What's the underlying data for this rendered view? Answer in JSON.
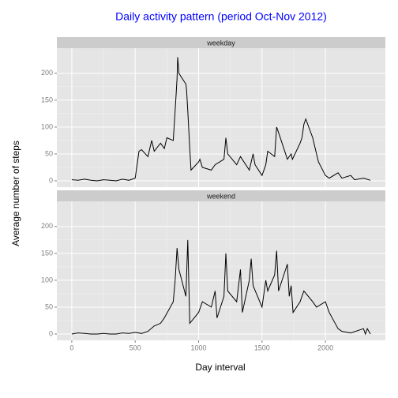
{
  "chart_data": {
    "type": "line",
    "title": "Daily activity pattern (period Oct-Nov 2012)",
    "x_label": "Day interval",
    "y_label": "Average number of steps",
    "xlim": [
      -117.75,
      2472.75
    ],
    "ylim": [
      -11.8,
      246.8
    ],
    "xticks": [
      0,
      500,
      1000,
      1500,
      2000
    ],
    "yticks": [
      0,
      50,
      100,
      150,
      200
    ],
    "grid": true,
    "series": [
      {
        "name": "weekday",
        "color": "#000000",
        "x": [
          0,
          50,
          100,
          150,
          200,
          250,
          300,
          350,
          400,
          450,
          500,
          530,
          550,
          600,
          630,
          650,
          700,
          730,
          750,
          800,
          820,
          830,
          835,
          845,
          900,
          905,
          915,
          930,
          940,
          1000,
          1010,
          1030,
          1100,
          1130,
          1200,
          1215,
          1230,
          1300,
          1330,
          1400,
          1430,
          1445,
          1500,
          1530,
          1545,
          1600,
          1615,
          1630,
          1700,
          1730,
          1740,
          1800,
          1815,
          1830,
          1845,
          1900,
          1930,
          1945,
          2000,
          2030,
          2100,
          2130,
          2200,
          2230,
          2300,
          2355
        ],
        "values": [
          2,
          1,
          3,
          1,
          0,
          2,
          1,
          0,
          3,
          1,
          5,
          55,
          58,
          45,
          75,
          55,
          70,
          60,
          80,
          75,
          150,
          190,
          230,
          200,
          180,
          170,
          130,
          60,
          20,
          35,
          40,
          25,
          20,
          30,
          40,
          80,
          50,
          30,
          45,
          20,
          50,
          30,
          10,
          30,
          55,
          45,
          100,
          90,
          40,
          50,
          40,
          70,
          80,
          105,
          115,
          80,
          50,
          35,
          10,
          5,
          15,
          5,
          10,
          2,
          5,
          1
        ]
      },
      {
        "name": "weekend",
        "color": "#000000",
        "x": [
          0,
          50,
          100,
          150,
          200,
          250,
          300,
          350,
          400,
          450,
          500,
          550,
          600,
          650,
          700,
          730,
          800,
          815,
          830,
          845,
          900,
          915,
          930,
          1000,
          1030,
          1100,
          1130,
          1145,
          1200,
          1215,
          1230,
          1300,
          1330,
          1345,
          1400,
          1415,
          1430,
          1500,
          1530,
          1545,
          1600,
          1615,
          1630,
          1700,
          1715,
          1730,
          1745,
          1800,
          1830,
          1900,
          1930,
          2000,
          2030,
          2100,
          2130,
          2200,
          2300,
          2315,
          2330,
          2355
        ],
        "values": [
          0,
          2,
          1,
          0,
          0,
          1,
          0,
          0,
          2,
          1,
          3,
          1,
          5,
          15,
          20,
          30,
          60,
          100,
          160,
          120,
          70,
          175,
          20,
          40,
          60,
          50,
          80,
          30,
          70,
          150,
          80,
          60,
          120,
          40,
          100,
          140,
          90,
          50,
          100,
          80,
          110,
          155,
          80,
          130,
          70,
          90,
          40,
          60,
          80,
          60,
          50,
          60,
          40,
          10,
          5,
          2,
          10,
          0,
          10,
          0
        ]
      }
    ]
  }
}
